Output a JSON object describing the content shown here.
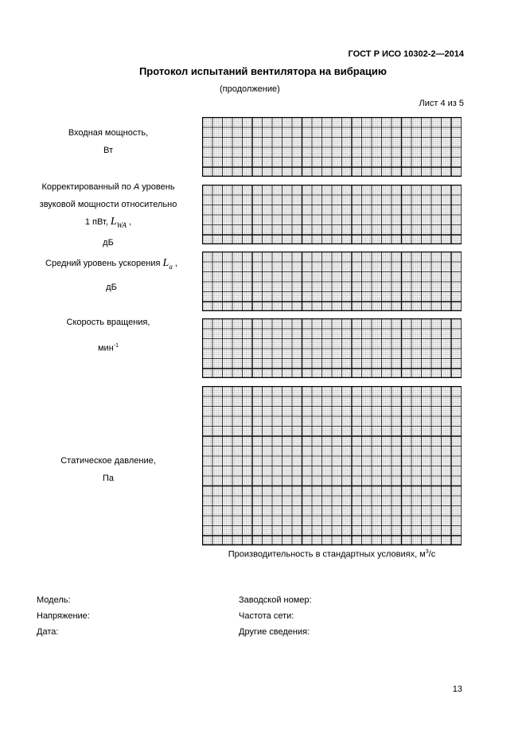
{
  "header": {
    "standard": "ГОСТ Р ИСО 10302-2—2014",
    "title": "Протокол испытаний вентилятора на вибрацию",
    "subtitle": "(продолжение)",
    "sheet": "Лист 4 из 5"
  },
  "charts": {
    "input_power": {
      "line1": "Входная мощность,",
      "unit": "Вт"
    },
    "sound_power": {
      "line1_pre": "Корректированный по ",
      "line1_em": "A",
      "line1_post": " уровень",
      "line2": "звуковой мощности относительно",
      "line3": "1 пВт,",
      "symbol": "L",
      "symbol_sub": "WA",
      "unit": "дБ"
    },
    "acceleration": {
      "line1": "Средний уровень ускорения",
      "symbol": "L",
      "symbol_sub": "a",
      "unit": "дБ"
    },
    "speed": {
      "line1": "Скорость вращения,",
      "unit": "мин",
      "unit_sup": "-1"
    },
    "static_pressure": {
      "line1": "Статическое давление,",
      "unit": "Па"
    },
    "x_axis": {
      "label": "Производительность в стандартных условиях, м",
      "sup": "3",
      "suffix": "/с"
    }
  },
  "fields": {
    "model": "Модель:",
    "serial": "Заводской номер:",
    "voltage": "Напряжение:",
    "frequency": "Частота сети:",
    "date": "Дата:",
    "other": "Другие сведения:"
  },
  "page_number": "13"
}
